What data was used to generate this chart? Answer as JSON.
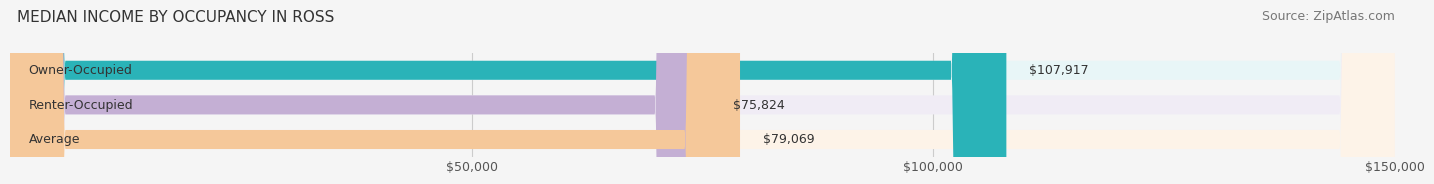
{
  "title": "MEDIAN INCOME BY OCCUPANCY IN ROSS",
  "source": "Source: ZipAtlas.com",
  "categories": [
    "Owner-Occupied",
    "Renter-Occupied",
    "Average"
  ],
  "values": [
    107917,
    75824,
    79069
  ],
  "bar_colors": [
    "#2ab3b8",
    "#c4afd4",
    "#f5c89a"
  ],
  "bar_bg_colors": [
    "#e8f6f7",
    "#f0ecf5",
    "#fdf3e8"
  ],
  "value_labels": [
    "$107,917",
    "$75,824",
    "$79,069"
  ],
  "xlim": [
    0,
    150000
  ],
  "xticks": [
    0,
    50000,
    100000,
    150000
  ],
  "xticklabels": [
    "",
    "$50,000",
    "$100,000",
    "$150,000"
  ],
  "grid_color": "#cccccc",
  "title_fontsize": 11,
  "source_fontsize": 9,
  "label_fontsize": 9,
  "bar_height": 0.55,
  "background_color": "#f5f5f5"
}
